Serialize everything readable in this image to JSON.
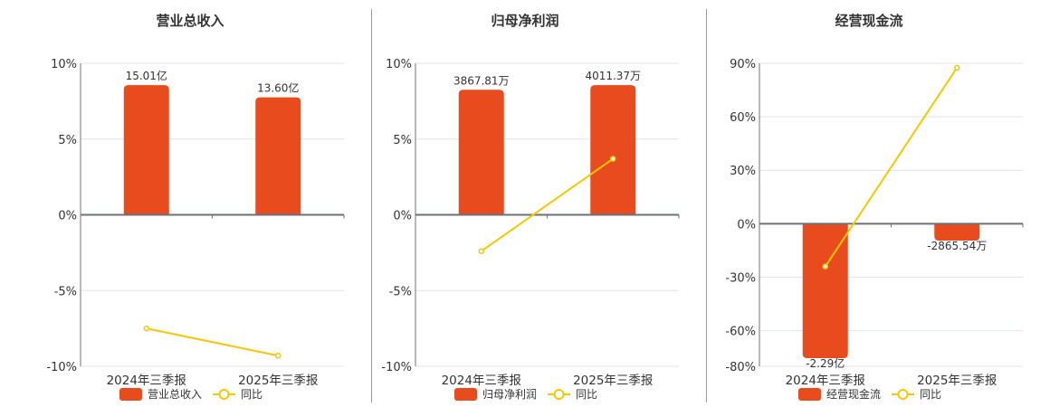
{
  "colors": {
    "bar": "#e84c1e",
    "line": "#f5c800",
    "grid": "#e0e4ee",
    "axis": "#6e7079"
  },
  "chart_data": [
    {
      "type": "bar+line",
      "title": "营业总收入",
      "categories": [
        "2024年三季报",
        "2025年三季报"
      ],
      "yticks": [
        "10%",
        "5%",
        "0%",
        "-5%",
        "-10%"
      ],
      "ylim": [
        -10,
        10
      ],
      "grid": true,
      "legend_position": "bottom",
      "series": [
        {
          "name": "营业总收入",
          "type": "bar",
          "values_wan": [
            150100,
            136000
          ],
          "labels": [
            "15.01亿",
            "13.60亿"
          ]
        },
        {
          "name": "同比",
          "type": "line",
          "values": [
            -7.5,
            -9.3
          ]
        }
      ]
    },
    {
      "type": "bar+line",
      "title": "归母净利润",
      "categories": [
        "2024年三季报",
        "2025年三季报"
      ],
      "yticks": [
        "10%",
        "5%",
        "0%",
        "-5%",
        "-10%"
      ],
      "ylim": [
        -10,
        10
      ],
      "grid": true,
      "legend_position": "bottom",
      "series": [
        {
          "name": "归母净利润",
          "type": "bar",
          "values_wan": [
            3867.81,
            4011.37
          ],
          "labels": [
            "3867.81万",
            "4011.37万"
          ]
        },
        {
          "name": "同比",
          "type": "line",
          "values": [
            -2.4,
            3.7
          ]
        }
      ]
    },
    {
      "type": "bar+line",
      "title": "经营现金流",
      "categories": [
        "2024年三季报",
        "2025年三季报"
      ],
      "yticks": [
        "90%",
        "60%",
        "30%",
        "0%",
        "-30%",
        "-60%",
        "-80%"
      ],
      "ylim": [
        -80,
        90
      ],
      "grid": true,
      "legend_position": "bottom",
      "series": [
        {
          "name": "经营现金流",
          "type": "bar",
          "values_wan": [
            -22900,
            -2865.54
          ],
          "labels": [
            "-2.29亿",
            "-2865.54万"
          ]
        },
        {
          "name": "同比",
          "type": "line",
          "values": [
            -24,
            87.5
          ]
        }
      ]
    }
  ]
}
